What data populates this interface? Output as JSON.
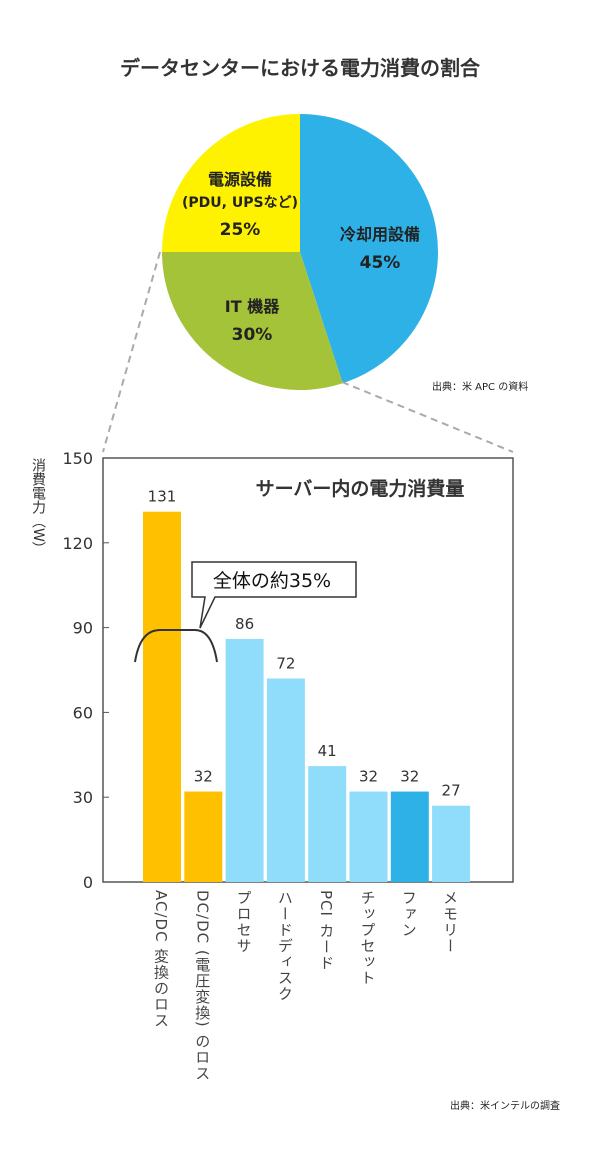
{
  "chart_data": [
    {
      "type": "pie",
      "title": "データセンターにおける電力消費の割合",
      "slices": [
        {
          "label": "冷却用設備",
          "sublabel": "",
          "value": 45,
          "pct": "45%",
          "color": "#2eb1e6"
        },
        {
          "label": "IT 機器",
          "sublabel": "",
          "value": 30,
          "pct": "30%",
          "color": "#a5c338"
        },
        {
          "label": "電源設備",
          "sublabel": "(PDU, UPSなど)",
          "value": 25,
          "pct": "25%",
          "color": "#fff200"
        }
      ],
      "source": "出典：米 APC の資料"
    },
    {
      "type": "bar",
      "title": "サーバー内の電力消費量",
      "ylabel": "消費電力（W）",
      "ylim": [
        0,
        150
      ],
      "yticks": [
        0,
        30,
        60,
        90,
        120,
        150
      ],
      "categories": [
        "AC/DC 変換のロス",
        "DC/DC (電圧変換) のロス",
        "プロセサ",
        "ハードディスク",
        "PCI カード",
        "チップセット",
        "ファン",
        "メモリー"
      ],
      "values": [
        131,
        32,
        86,
        72,
        41,
        32,
        32,
        27
      ],
      "colors": [
        "#ffc000",
        "#ffc000",
        "#8fddfa",
        "#8fddfa",
        "#8fddfa",
        "#8fddfa",
        "#2eb1e6",
        "#8fddfa"
      ],
      "annotation": "全体の約35%",
      "source": "出典：米インテルの調査"
    }
  ]
}
